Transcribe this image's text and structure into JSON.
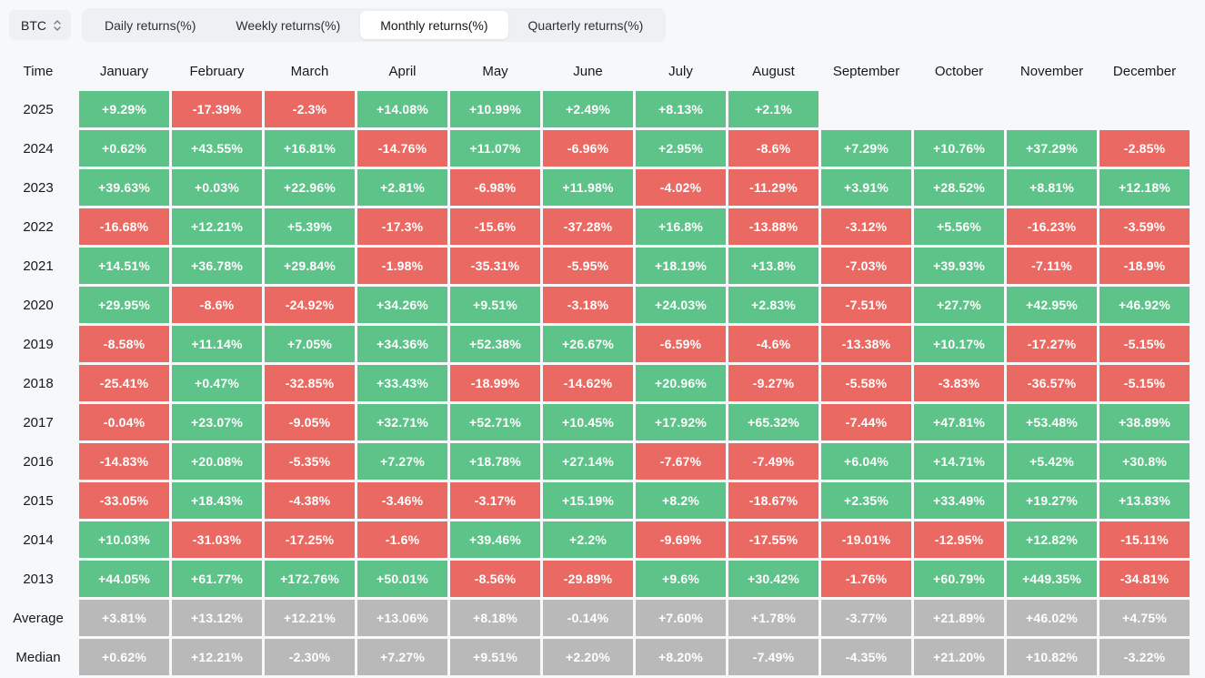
{
  "toolbar": {
    "symbol": "BTC",
    "tabs": [
      {
        "label": "Daily returns(%)",
        "active": false
      },
      {
        "label": "Weekly returns(%)",
        "active": false
      },
      {
        "label": "Monthly returns(%)",
        "active": true
      },
      {
        "label": "Quarterly returns(%)",
        "active": false
      }
    ]
  },
  "colors": {
    "positive": "#5dc389",
    "negative": "#ea6a63",
    "neutral": "#b9b9b9",
    "background": "#f7f8fa"
  },
  "chart_data": {
    "type": "heatmap",
    "title": "BTC Monthly returns(%)",
    "legend_position": "none",
    "columns": [
      "Time",
      "January",
      "February",
      "March",
      "April",
      "May",
      "June",
      "July",
      "August",
      "September",
      "October",
      "November",
      "December"
    ],
    "rows": [
      {
        "label": "2025",
        "neutral": false,
        "values": [
          "+9.29%",
          "-17.39%",
          "-2.3%",
          "+14.08%",
          "+10.99%",
          "+2.49%",
          "+8.13%",
          "+2.1%",
          "",
          "",
          "",
          ""
        ]
      },
      {
        "label": "2024",
        "neutral": false,
        "values": [
          "+0.62%",
          "+43.55%",
          "+16.81%",
          "-14.76%",
          "+11.07%",
          "-6.96%",
          "+2.95%",
          "-8.6%",
          "+7.29%",
          "+10.76%",
          "+37.29%",
          "-2.85%"
        ]
      },
      {
        "label": "2023",
        "neutral": false,
        "values": [
          "+39.63%",
          "+0.03%",
          "+22.96%",
          "+2.81%",
          "-6.98%",
          "+11.98%",
          "-4.02%",
          "-11.29%",
          "+3.91%",
          "+28.52%",
          "+8.81%",
          "+12.18%"
        ]
      },
      {
        "label": "2022",
        "neutral": false,
        "values": [
          "-16.68%",
          "+12.21%",
          "+5.39%",
          "-17.3%",
          "-15.6%",
          "-37.28%",
          "+16.8%",
          "-13.88%",
          "-3.12%",
          "+5.56%",
          "-16.23%",
          "-3.59%"
        ]
      },
      {
        "label": "2021",
        "neutral": false,
        "values": [
          "+14.51%",
          "+36.78%",
          "+29.84%",
          "-1.98%",
          "-35.31%",
          "-5.95%",
          "+18.19%",
          "+13.8%",
          "-7.03%",
          "+39.93%",
          "-7.11%",
          "-18.9%"
        ]
      },
      {
        "label": "2020",
        "neutral": false,
        "values": [
          "+29.95%",
          "-8.6%",
          "-24.92%",
          "+34.26%",
          "+9.51%",
          "-3.18%",
          "+24.03%",
          "+2.83%",
          "-7.51%",
          "+27.7%",
          "+42.95%",
          "+46.92%"
        ]
      },
      {
        "label": "2019",
        "neutral": false,
        "values": [
          "-8.58%",
          "+11.14%",
          "+7.05%",
          "+34.36%",
          "+52.38%",
          "+26.67%",
          "-6.59%",
          "-4.6%",
          "-13.38%",
          "+10.17%",
          "-17.27%",
          "-5.15%"
        ]
      },
      {
        "label": "2018",
        "neutral": false,
        "values": [
          "-25.41%",
          "+0.47%",
          "-32.85%",
          "+33.43%",
          "-18.99%",
          "-14.62%",
          "+20.96%",
          "-9.27%",
          "-5.58%",
          "-3.83%",
          "-36.57%",
          "-5.15%"
        ]
      },
      {
        "label": "2017",
        "neutral": false,
        "values": [
          "-0.04%",
          "+23.07%",
          "-9.05%",
          "+32.71%",
          "+52.71%",
          "+10.45%",
          "+17.92%",
          "+65.32%",
          "-7.44%",
          "+47.81%",
          "+53.48%",
          "+38.89%"
        ]
      },
      {
        "label": "2016",
        "neutral": false,
        "values": [
          "-14.83%",
          "+20.08%",
          "-5.35%",
          "+7.27%",
          "+18.78%",
          "+27.14%",
          "-7.67%",
          "-7.49%",
          "+6.04%",
          "+14.71%",
          "+5.42%",
          "+30.8%"
        ]
      },
      {
        "label": "2015",
        "neutral": false,
        "values": [
          "-33.05%",
          "+18.43%",
          "-4.38%",
          "-3.46%",
          "-3.17%",
          "+15.19%",
          "+8.2%",
          "-18.67%",
          "+2.35%",
          "+33.49%",
          "+19.27%",
          "+13.83%"
        ]
      },
      {
        "label": "2014",
        "neutral": false,
        "values": [
          "+10.03%",
          "-31.03%",
          "-17.25%",
          "-1.6%",
          "+39.46%",
          "+2.2%",
          "-9.69%",
          "-17.55%",
          "-19.01%",
          "-12.95%",
          "+12.82%",
          "-15.11%"
        ]
      },
      {
        "label": "2013",
        "neutral": false,
        "values": [
          "+44.05%",
          "+61.77%",
          "+172.76%",
          "+50.01%",
          "-8.56%",
          "-29.89%",
          "+9.6%",
          "+30.42%",
          "-1.76%",
          "+60.79%",
          "+449.35%",
          "-34.81%"
        ]
      },
      {
        "label": "Average",
        "neutral": true,
        "values": [
          "+3.81%",
          "+13.12%",
          "+12.21%",
          "+13.06%",
          "+8.18%",
          "-0.14%",
          "+7.60%",
          "+1.78%",
          "-3.77%",
          "+21.89%",
          "+46.02%",
          "+4.75%"
        ]
      },
      {
        "label": "Median",
        "neutral": true,
        "values": [
          "+0.62%",
          "+12.21%",
          "-2.30%",
          "+7.27%",
          "+9.51%",
          "+2.20%",
          "+8.20%",
          "-7.49%",
          "-4.35%",
          "+21.20%",
          "+10.82%",
          "-3.22%"
        ]
      }
    ]
  }
}
